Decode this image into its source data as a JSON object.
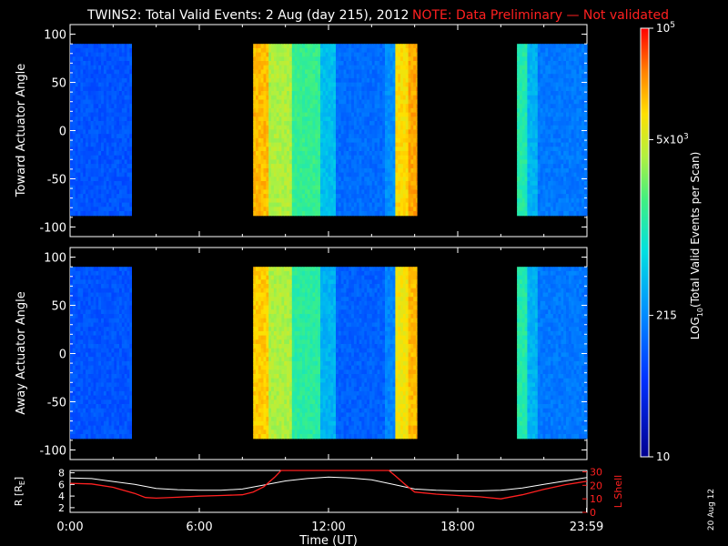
{
  "title": {
    "main": "TWINS2: Total Valid Events:  2 Aug (day 215), 2012",
    "note": "NOTE: Data Preliminary — Not validated"
  },
  "datestamp": "20 Aug 12",
  "colors": {
    "note": "#ff2020",
    "rshell": "#ffffff",
    "lshell": "#ff2020"
  },
  "chart_data": [
    {
      "type": "heatmap",
      "panel": "toward",
      "ylabel": "Toward Actuator Angle",
      "yticks": [
        100,
        50,
        0,
        -50,
        -100
      ],
      "ylim": [
        -110,
        110
      ],
      "xlim_hours": [
        0,
        24
      ],
      "data_range_deg": [
        -88,
        90
      ],
      "segments": [
        {
          "start_h": 0.0,
          "end_h": 2.85,
          "level": 0.24,
          "bands": [
            [
              2.8,
              3.45,
              0.42
            ]
          ]
        },
        {
          "start_h": 8.5,
          "end_h": 16.1,
          "level": 0.72,
          "bands": [
            [
              8.5,
              9.15,
              0.84
            ],
            [
              9.15,
              10.2,
              0.7
            ],
            [
              10.2,
              11.6,
              0.58
            ],
            [
              11.6,
              12.3,
              0.42
            ],
            [
              12.3,
              14.6,
              0.28
            ],
            [
              14.6,
              15.1,
              0.34
            ],
            [
              15.1,
              15.6,
              0.8
            ],
            [
              15.6,
              16.1,
              0.86
            ]
          ]
        },
        {
          "start_h": 20.75,
          "end_h": 24.0,
          "level": 0.3,
          "bands": [
            [
              20.75,
              21.2,
              0.55
            ],
            [
              21.2,
              21.6,
              0.4
            ]
          ]
        }
      ]
    },
    {
      "type": "heatmap",
      "panel": "away",
      "ylabel": "Away Actuator Angle",
      "yticks": [
        100,
        50,
        0,
        -50,
        -100
      ],
      "ylim": [
        -110,
        110
      ],
      "xlim_hours": [
        0,
        24
      ],
      "data_range_deg": [
        -88,
        90
      ],
      "segments": [
        {
          "start_h": 0.0,
          "end_h": 2.85,
          "level": 0.24,
          "bands": [
            [
              2.8,
              3.45,
              0.44
            ]
          ]
        },
        {
          "start_h": 8.5,
          "end_h": 16.1,
          "level": 0.72,
          "bands": [
            [
              8.5,
              9.15,
              0.82
            ],
            [
              9.15,
              10.2,
              0.7
            ],
            [
              10.2,
              11.6,
              0.56
            ],
            [
              11.6,
              12.3,
              0.4
            ],
            [
              12.3,
              14.6,
              0.26
            ],
            [
              14.6,
              15.1,
              0.32
            ],
            [
              15.1,
              15.6,
              0.78
            ],
            [
              15.6,
              16.1,
              0.84
            ]
          ]
        },
        {
          "start_h": 20.75,
          "end_h": 24.0,
          "level": 0.3,
          "bands": [
            [
              20.75,
              21.2,
              0.55
            ],
            [
              21.2,
              21.6,
              0.4
            ]
          ]
        }
      ]
    },
    {
      "type": "line",
      "panel": "orbit",
      "ylabel_left": "R [R",
      "ylabel_left_sub": "E",
      "ylabel_right": "L Shell",
      "yticks_left": [
        8,
        6,
        4,
        2
      ],
      "yticks_right": [
        30,
        20,
        10,
        0
      ],
      "ylim_left": [
        1.2,
        8.4
      ],
      "ylim_right": [
        0,
        31
      ],
      "xlabel": "Time (UT)",
      "xticks": [
        "0:00",
        "6:00",
        "12:00",
        "18:00",
        "23:59"
      ],
      "xtick_hours": [
        0,
        6,
        12,
        18,
        23.98
      ],
      "series": [
        {
          "axis": "left",
          "color": "#ffffff",
          "x": [
            0,
            1,
            2,
            3,
            4,
            5,
            6,
            7,
            8,
            9,
            10,
            11,
            12,
            13,
            14,
            15,
            16,
            17,
            18,
            19,
            20,
            21,
            22,
            23,
            24
          ],
          "y": [
            7.1,
            7.0,
            6.5,
            6.0,
            5.3,
            5.1,
            5.0,
            5.0,
            5.2,
            5.9,
            6.6,
            7.0,
            7.25,
            7.1,
            6.8,
            6.0,
            5.2,
            5.0,
            4.9,
            4.9,
            5.0,
            5.4,
            6.0,
            6.6,
            7.2
          ]
        },
        {
          "axis": "right",
          "color": "#ff2020",
          "x": [
            0,
            1,
            2,
            3,
            3.5,
            4,
            5,
            6,
            7,
            8,
            8.5,
            9,
            9.5,
            9.8,
            14.8,
            15.1,
            15.6,
            16,
            17,
            18,
            19,
            20,
            21,
            22,
            23,
            24
          ],
          "y": [
            21.5,
            21,
            18.5,
            14,
            11,
            10.5,
            11.2,
            12,
            12.5,
            13,
            15,
            19,
            26,
            31,
            31,
            27,
            20,
            15,
            13.5,
            12.5,
            11.5,
            10,
            13,
            17,
            20.5,
            23
          ]
        }
      ]
    }
  ],
  "colorbar": {
    "label": "LOG",
    "label_sub": "10",
    "label_rest": "(Total Valid Events per Scan)",
    "ticks": [
      {
        "base": "10",
        "sup": "5",
        "frac": 1.0
      },
      {
        "base": "5x10",
        "sup": "3",
        "frac": 0.74
      },
      {
        "base": "215",
        "sup": "",
        "frac": 0.33
      },
      {
        "base": "10",
        "sup": "",
        "frac": 0.0
      }
    ]
  }
}
